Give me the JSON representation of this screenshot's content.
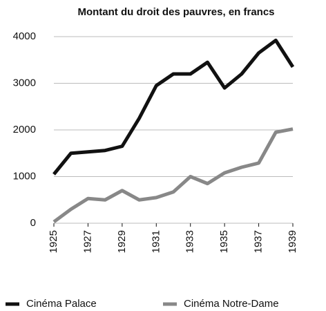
{
  "chart_data": {
    "type": "line",
    "title": "Montant du droit des pauvres, en francs",
    "x": [
      1925,
      1926,
      1927,
      1928,
      1929,
      1930,
      1931,
      1932,
      1933,
      1934,
      1935,
      1936,
      1937,
      1938,
      1939
    ],
    "series": [
      {
        "name": "Cinéma Palace",
        "color": "#111111",
        "values": [
          1050,
          1500,
          1530,
          1560,
          1650,
          2250,
          2950,
          3200,
          3200,
          3450,
          2900,
          3200,
          3650,
          3920,
          3350
        ]
      },
      {
        "name": "Cinéma Notre-Dame",
        "color": "#888888",
        "values": [
          30,
          300,
          530,
          500,
          700,
          500,
          550,
          670,
          1000,
          850,
          1080,
          1200,
          1290,
          1950,
          2020
        ]
      }
    ],
    "xlim": [
      1925,
      1939
    ],
    "xticks": [
      1925,
      1927,
      1929,
      1931,
      1933,
      1935,
      1937,
      1939
    ],
    "ylim": [
      0,
      4000
    ],
    "yticks": [
      0,
      1000,
      2000,
      3000,
      4000
    ],
    "grid": true,
    "legend": "bottom"
  }
}
